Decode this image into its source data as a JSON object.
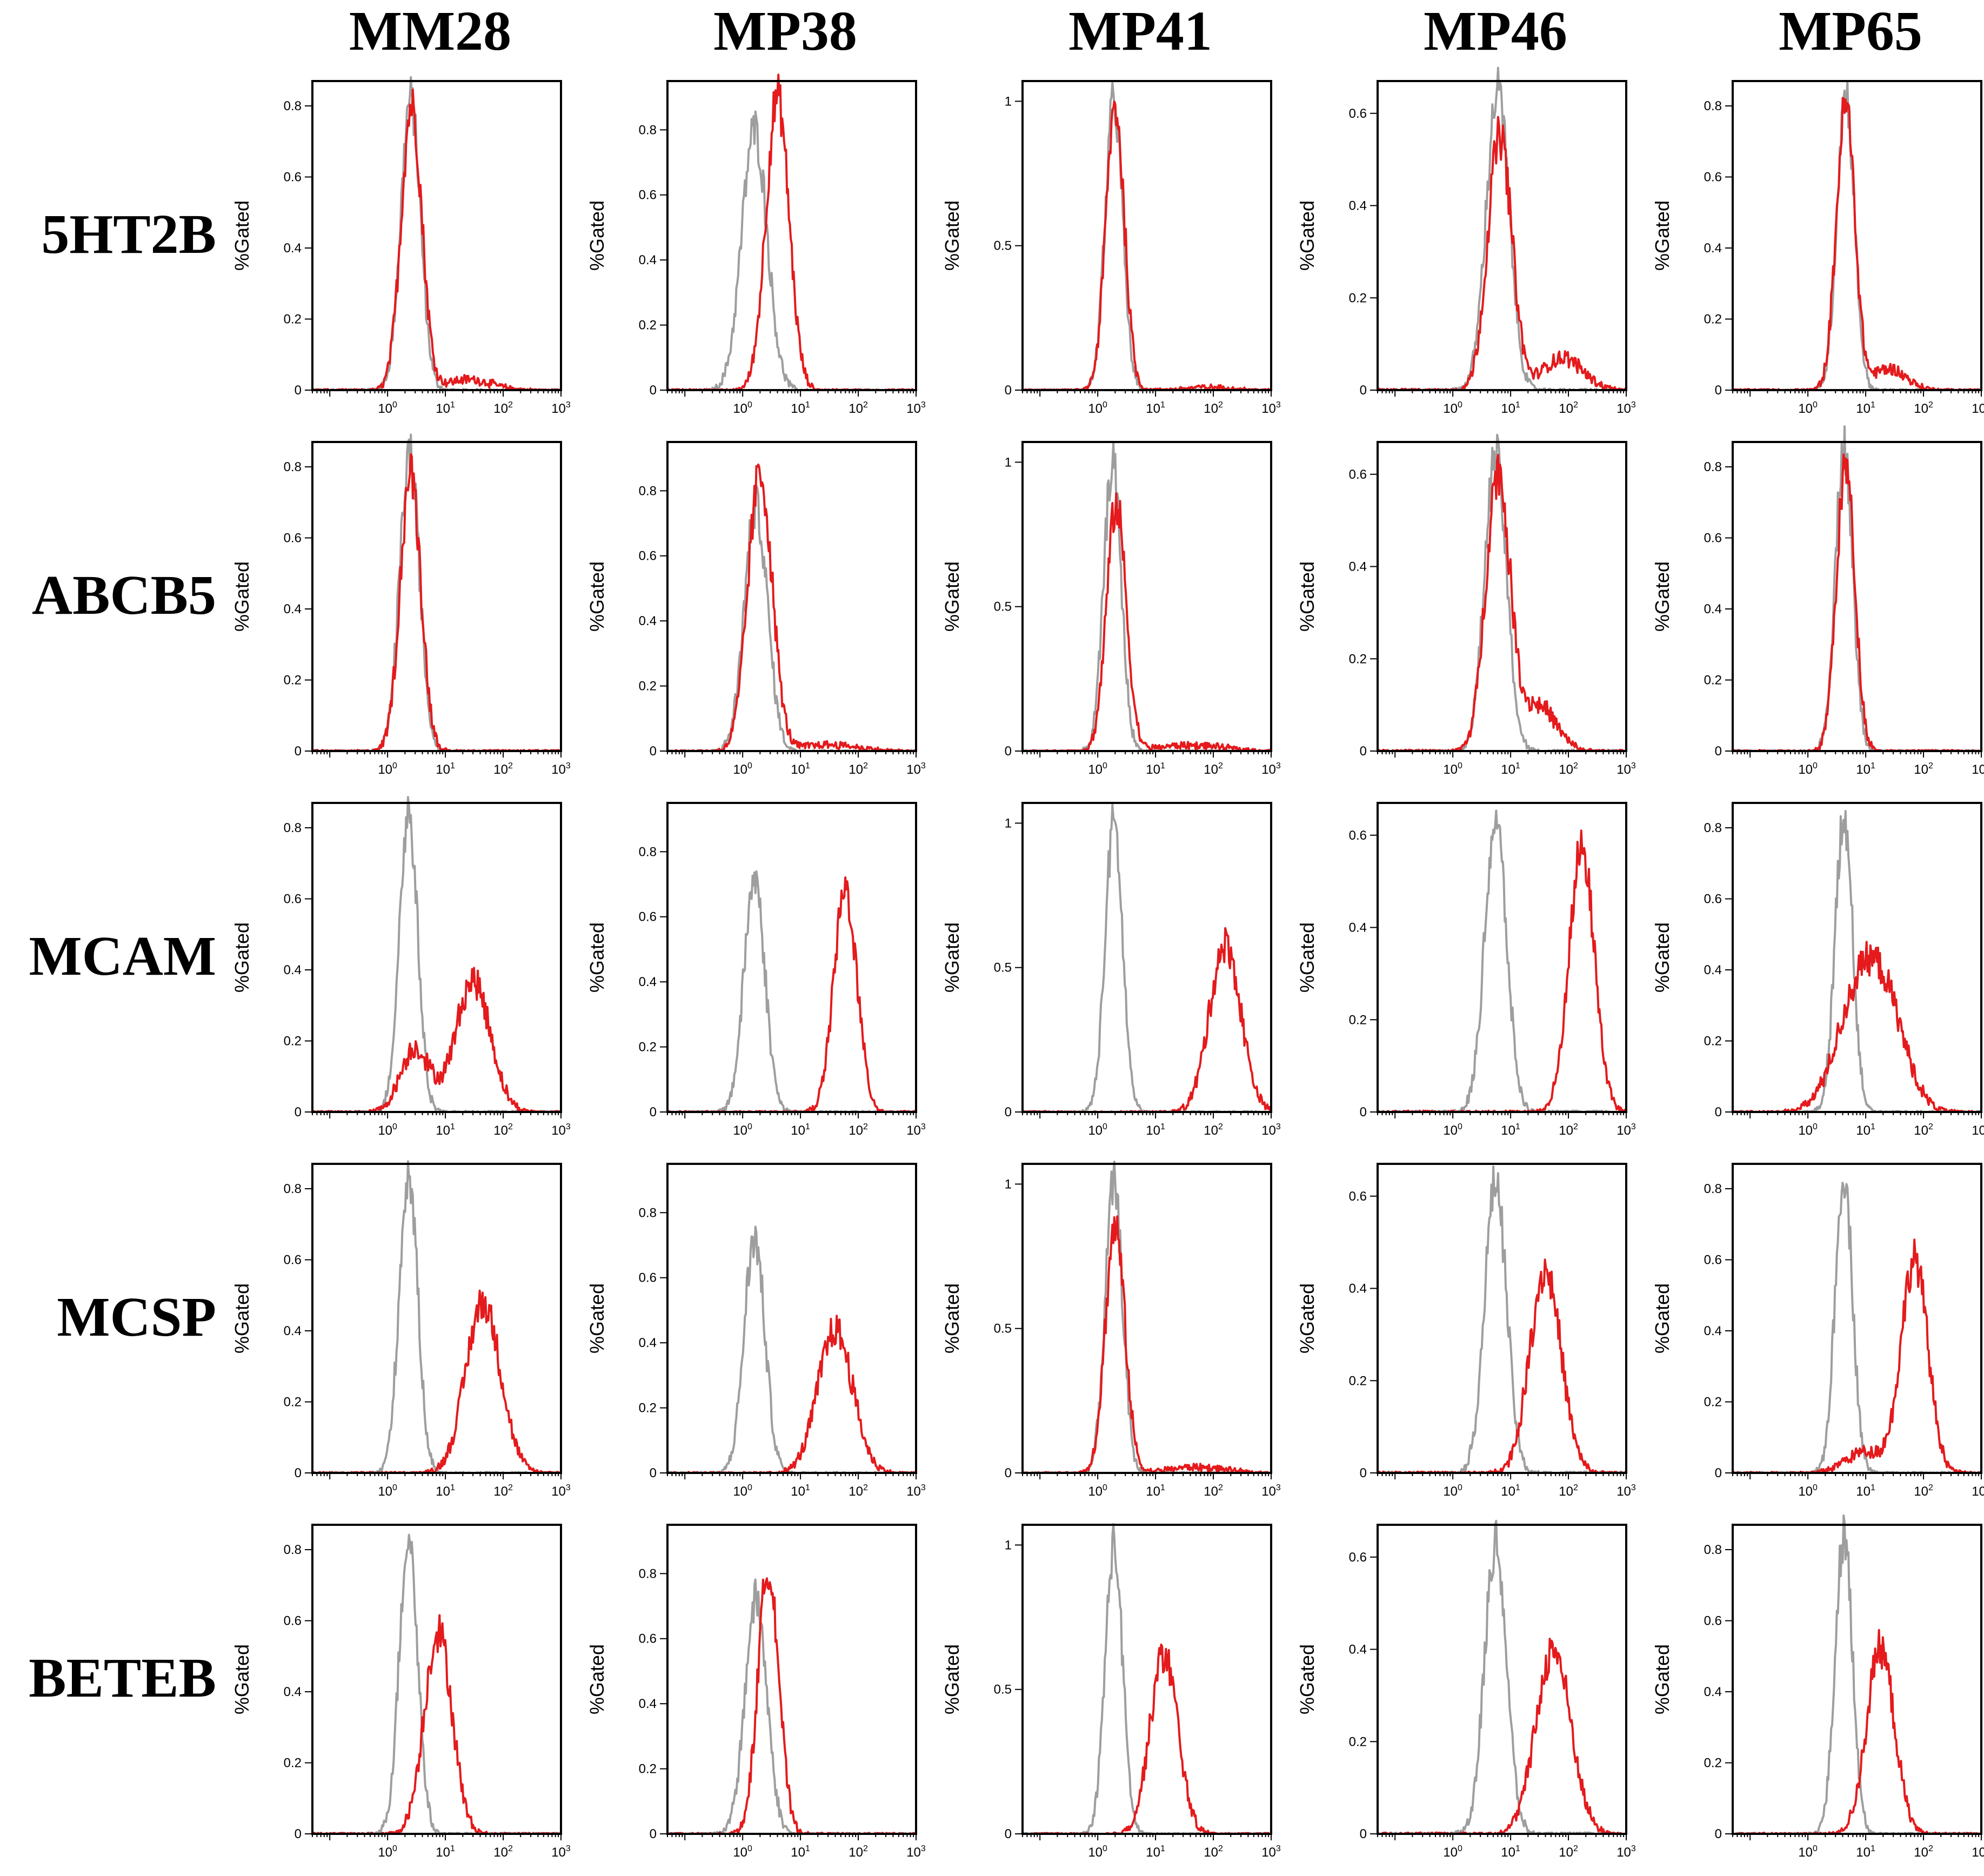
{
  "chart_data": {
    "type": "histogram-grid",
    "columns": [
      "MM28",
      "MP38",
      "MP41",
      "MP46",
      "MP65"
    ],
    "rows": [
      "5HT2B",
      "ABCB5",
      "MCAM",
      "MCSP",
      "BETEB"
    ],
    "ylabel": "%Gated",
    "x_scale": "log",
    "xlim": [
      0.05,
      1000
    ],
    "x_ticks": [
      1,
      10,
      100,
      1000
    ],
    "x_tick_labels": [
      {
        "base": "10",
        "exp": "0"
      },
      {
        "base": "10",
        "exp": "1"
      },
      {
        "base": "10",
        "exp": "2"
      },
      {
        "base": "10",
        "exp": "3"
      }
    ],
    "y_ticks_by_column": [
      {
        "ylim": [
          0,
          0.87
        ],
        "ticks": [
          0,
          0.2,
          0.4,
          0.6,
          0.8
        ],
        "labels": [
          "0",
          "0.2",
          "0.4",
          "0.6",
          "0.8"
        ]
      },
      {
        "ylim": [
          0,
          0.95
        ],
        "ticks": [
          0,
          0.2,
          0.4,
          0.6,
          0.8
        ],
        "labels": [
          "0",
          "0.2",
          "0.4",
          "0.6",
          "0.8"
        ]
      },
      {
        "ylim": [
          0,
          1.07
        ],
        "ticks": [
          0,
          0.5,
          1
        ],
        "labels": [
          "0",
          "0.5",
          "1"
        ]
      },
      {
        "ylim": [
          0,
          0.67
        ],
        "ticks": [
          0,
          0.2,
          0.4,
          0.6
        ],
        "labels": [
          "0",
          "0.2",
          "0.4",
          "0.6"
        ]
      },
      {
        "ylim": [
          0,
          0.87
        ],
        "ticks": [
          0,
          0.2,
          0.4,
          0.6,
          0.8
        ],
        "labels": [
          "0",
          "0.2",
          "0.4",
          "0.6",
          "0.8"
        ]
      }
    ],
    "colors": {
      "control": "#9e9e9e",
      "stained": "#e41a1c"
    },
    "grid": false,
    "legend": "none",
    "panels": [
      [
        {
          "control": {
            "peak": 2.5,
            "height": 0.82,
            "width": 0.17
          },
          "stained": {
            "peak": 2.6,
            "height": 0.8,
            "width": 0.18,
            "tail": {
              "center": 25,
              "height": 0.03,
              "width": 0.4
            }
          }
        },
        {
          "control": {
            "peak": 1.6,
            "height": 0.8,
            "width": 0.22
          },
          "stained": {
            "peak": 4.0,
            "height": 0.9,
            "width": 0.2
          }
        },
        {
          "control": {
            "peak": 1.9,
            "height": 1.0,
            "width": 0.15
          },
          "stained": {
            "peak": 2.0,
            "height": 0.98,
            "width": 0.16,
            "tail": {
              "center": 80,
              "height": 0.01,
              "width": 0.4
            }
          }
        },
        {
          "control": {
            "peak": 6.0,
            "height": 0.65,
            "width": 0.2
          },
          "stained": {
            "peak": 6.5,
            "height": 0.55,
            "width": 0.21,
            "tail": {
              "center": 80,
              "height": 0.07,
              "width": 0.35
            }
          }
        },
        {
          "control": {
            "peak": 4.5,
            "height": 0.84,
            "width": 0.15
          },
          "stained": {
            "peak": 4.5,
            "height": 0.8,
            "width": 0.16,
            "tail": {
              "center": 25,
              "height": 0.06,
              "width": 0.3
            }
          }
        }
      ],
      [
        {
          "control": {
            "peak": 2.4,
            "height": 0.84,
            "width": 0.17
          },
          "stained": {
            "peak": 2.5,
            "height": 0.78,
            "width": 0.18
          }
        },
        {
          "control": {
            "peak": 1.7,
            "height": 0.75,
            "width": 0.2
          },
          "stained": {
            "peak": 2.0,
            "height": 0.85,
            "width": 0.21,
            "tail": {
              "center": 30,
              "height": 0.02,
              "width": 0.5
            }
          }
        },
        {
          "control": {
            "peak": 1.8,
            "height": 1.0,
            "width": 0.15
          },
          "stained": {
            "peak": 2.1,
            "height": 0.85,
            "width": 0.17,
            "tail": {
              "center": 40,
              "height": 0.02,
              "width": 0.6
            }
          }
        },
        {
          "control": {
            "peak": 5.5,
            "height": 0.64,
            "width": 0.19
          },
          "stained": {
            "peak": 6.0,
            "height": 0.6,
            "width": 0.21,
            "tail": {
              "center": 30,
              "height": 0.1,
              "width": 0.3
            }
          }
        },
        {
          "control": {
            "peak": 4.2,
            "height": 0.86,
            "width": 0.15
          },
          "stained": {
            "peak": 4.5,
            "height": 0.8,
            "width": 0.16
          }
        }
      ],
      [
        {
          "control": {
            "peak": 2.3,
            "height": 0.84,
            "width": 0.16
          },
          "stained": {
            "peak": 30,
            "height": 0.37,
            "width": 0.3,
            "tail": {
              "center": 3,
              "height": 0.18,
              "width": 0.25
            }
          }
        },
        {
          "control": {
            "peak": 1.6,
            "height": 0.72,
            "width": 0.18
          },
          "stained": {
            "peak": 60,
            "height": 0.68,
            "width": 0.2
          }
        },
        {
          "control": {
            "peak": 1.9,
            "height": 1.0,
            "width": 0.15
          },
          "stained": {
            "peak": 160,
            "height": 0.58,
            "width": 0.27
          }
        },
        {
          "control": {
            "peak": 5.5,
            "height": 0.63,
            "width": 0.19
          },
          "stained": {
            "peak": 170,
            "height": 0.57,
            "width": 0.22
          }
        },
        {
          "control": {
            "peak": 4.2,
            "height": 0.84,
            "width": 0.15
          },
          "stained": {
            "peak": 8,
            "height": 0.33,
            "width": 0.4,
            "tail": {
              "center": 25,
              "height": 0.2,
              "width": 0.35
            }
          }
        }
      ],
      [
        {
          "control": {
            "peak": 2.3,
            "height": 0.84,
            "width": 0.16
          },
          "stained": {
            "peak": 45,
            "height": 0.48,
            "width": 0.3
          }
        },
        {
          "control": {
            "peak": 1.6,
            "height": 0.72,
            "width": 0.18
          },
          "stained": {
            "peak": 40,
            "height": 0.44,
            "width": 0.3
          }
        },
        {
          "control": {
            "peak": 1.9,
            "height": 1.0,
            "width": 0.15
          },
          "stained": {
            "peak": 2.0,
            "height": 0.85,
            "width": 0.17,
            "tail": {
              "center": 50,
              "height": 0.02,
              "width": 0.5
            }
          }
        },
        {
          "control": {
            "peak": 5.5,
            "height": 0.63,
            "width": 0.19
          },
          "stained": {
            "peak": 40,
            "height": 0.44,
            "width": 0.27
          }
        },
        {
          "control": {
            "peak": 4.2,
            "height": 0.84,
            "width": 0.15
          },
          "stained": {
            "peak": 70,
            "height": 0.6,
            "width": 0.23,
            "tail": {
              "center": 10,
              "height": 0.06,
              "width": 0.35
            }
          }
        }
      ],
      [
        {
          "control": {
            "peak": 2.3,
            "height": 0.84,
            "width": 0.16
          },
          "stained": {
            "peak": 7.5,
            "height": 0.57,
            "width": 0.24
          }
        },
        {
          "control": {
            "peak": 1.7,
            "height": 0.72,
            "width": 0.19
          },
          "stained": {
            "peak": 2.8,
            "height": 0.82,
            "width": 0.18
          }
        },
        {
          "control": {
            "peak": 1.9,
            "height": 1.0,
            "width": 0.15
          },
          "stained": {
            "peak": 14,
            "height": 0.62,
            "width": 0.24
          }
        },
        {
          "control": {
            "peak": 5.5,
            "height": 0.63,
            "width": 0.19
          },
          "stained": {
            "peak": 55,
            "height": 0.4,
            "width": 0.3
          }
        },
        {
          "control": {
            "peak": 4.2,
            "height": 0.84,
            "width": 0.15
          },
          "stained": {
            "peak": 18,
            "height": 0.52,
            "width": 0.24
          }
        }
      ]
    ]
  }
}
